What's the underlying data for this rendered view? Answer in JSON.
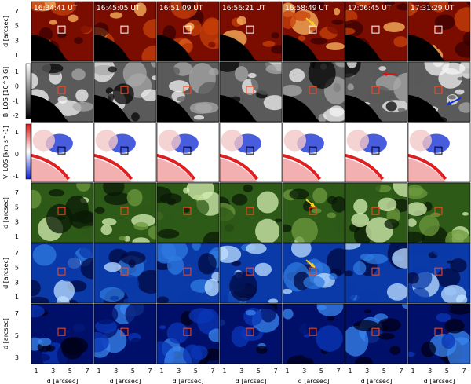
{
  "timestamps": [
    "16:34:41 UT",
    "16:45:05 UT",
    "16:51:09 UT",
    "16:56:21 UT",
    "16:58:49 UT",
    "17:06:45 UT",
    "17:31:29 UT"
  ],
  "rows": [
    {
      "id": "row-1",
      "palette": "red-hot",
      "ylabel": "d [arcsec]",
      "ticks": [
        "7",
        "5",
        "3",
        "1"
      ],
      "colorbar": null
    },
    {
      "id": "row-2",
      "palette": "gray",
      "ylabel": "B_LOS [10^3 G]",
      "ticks": [
        "1",
        "0",
        "-1",
        "-2"
      ],
      "colorbar": {
        "ticks": [
          "1",
          "0",
          "-1",
          "-2"
        ]
      }
    },
    {
      "id": "row-3",
      "palette": "red-white-blue",
      "ylabel": "V_LOS [km s^-1]",
      "ticks": [
        "1",
        "0",
        "-1"
      ],
      "colorbar": {
        "ticks": [
          "1",
          "0",
          "-1"
        ]
      }
    },
    {
      "id": "row-4",
      "palette": "green",
      "ylabel": "d [arcsec]",
      "ticks": [
        "7",
        "5",
        "3",
        "1"
      ],
      "colorbar": null
    },
    {
      "id": "row-5",
      "palette": "blue-light",
      "ylabel": "d [arcsec]",
      "ticks": [
        "7",
        "5",
        "3",
        "1"
      ],
      "colorbar": null
    },
    {
      "id": "row-6",
      "palette": "blue-dark",
      "ylabel": "d [arcsec]",
      "ticks": [
        "7",
        "5",
        "3"
      ],
      "colorbar": null
    }
  ],
  "xlabel": "d [arcsec]",
  "xticks": [
    "1",
    "3",
    "5",
    "7"
  ],
  "arrows": [
    {
      "row": 0,
      "col": 4,
      "color": "#ffd21a"
    },
    {
      "row": 1,
      "col": 5,
      "color": "#e01010"
    },
    {
      "row": 1,
      "col": 6,
      "color": "#1030e0"
    },
    {
      "row": 3,
      "col": 4,
      "color": "#ffd21a"
    },
    {
      "row": 4,
      "col": 4,
      "color": "#ffd21a"
    }
  ]
}
